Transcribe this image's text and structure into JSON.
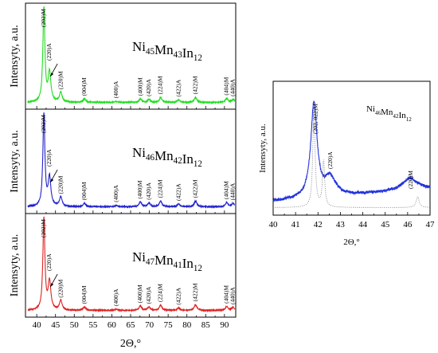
{
  "chart_data": [
    {
      "type": "line",
      "panel": "main-top",
      "composition": {
        "el1": "Ni",
        "n1": "45",
        "el2": "Mn",
        "n2": "43",
        "el3": "In",
        "n3": "12"
      },
      "ylabel": "Intensyty, a.u.",
      "xlim": [
        37,
        93
      ],
      "color": "#22dd22",
      "peaks": [
        {
          "x": 41.9,
          "h": 0.96
        },
        {
          "x": 43.4,
          "h": 0.3
        },
        {
          "x": 46.4,
          "h": 0.1
        },
        {
          "x": 52.7,
          "h": 0.035
        },
        {
          "x": 61.2,
          "h": 0.01
        },
        {
          "x": 67.6,
          "h": 0.035
        },
        {
          "x": 69.9,
          "h": 0.03
        },
        {
          "x": 73.0,
          "h": 0.05
        },
        {
          "x": 77.8,
          "h": 0.025
        },
        {
          "x": 82.3,
          "h": 0.05
        },
        {
          "x": 90.6,
          "h": 0.04
        },
        {
          "x": 92.3,
          "h": 0.03
        }
      ],
      "annotations": [
        {
          "text": "(202)M",
          "x": 41.9
        },
        {
          "text": "(220)A",
          "x": 43.4
        },
        {
          "text": "(220)M",
          "x": 46.4
        },
        {
          "text": "(004)M",
          "x": 52.7
        },
        {
          "text": "(400)A",
          "x": 61.2
        },
        {
          "text": "(400)M",
          "x": 67.6
        },
        {
          "text": "(420)A",
          "x": 69.9
        },
        {
          "text": "(224)M",
          "x": 73.0
        },
        {
          "text": "(422)A",
          "x": 77.8
        },
        {
          "text": "(422)M",
          "x": 82.3
        },
        {
          "text": "(404)M",
          "x": 90.6
        },
        {
          "text": "(440)A",
          "x": 92.3
        }
      ]
    },
    {
      "type": "line",
      "panel": "main-middle",
      "composition": {
        "el1": "Ni",
        "n1": "46",
        "el2": "Mn",
        "n2": "42",
        "el3": "In",
        "n3": "12"
      },
      "ylabel": "Intensyty, a.u.",
      "xlim": [
        37,
        93
      ],
      "color": "#2222cc",
      "peaks": [
        {
          "x": 41.9,
          "h": 0.96
        },
        {
          "x": 43.4,
          "h": 0.3
        },
        {
          "x": 46.4,
          "h": 0.1
        },
        {
          "x": 52.7,
          "h": 0.035
        },
        {
          "x": 61.2,
          "h": 0.015
        },
        {
          "x": 67.6,
          "h": 0.05
        },
        {
          "x": 69.9,
          "h": 0.04
        },
        {
          "x": 73.0,
          "h": 0.06
        },
        {
          "x": 77.8,
          "h": 0.03
        },
        {
          "x": 82.3,
          "h": 0.06
        },
        {
          "x": 90.6,
          "h": 0.045
        },
        {
          "x": 92.3,
          "h": 0.035
        }
      ],
      "annotations": [
        {
          "text": "(202)M",
          "x": 41.9
        },
        {
          "text": "(220)A",
          "x": 43.4
        },
        {
          "text": "(220)M",
          "x": 46.4
        },
        {
          "text": "(004)M",
          "x": 52.7
        },
        {
          "text": "(400)A",
          "x": 61.2
        },
        {
          "text": "(400)M",
          "x": 67.6
        },
        {
          "text": "(420)A",
          "x": 69.9
        },
        {
          "text": "(224)M",
          "x": 73.0
        },
        {
          "text": "(422)A",
          "x": 77.8
        },
        {
          "text": "(422)M",
          "x": 82.3
        },
        {
          "text": "(404)M",
          "x": 90.6
        },
        {
          "text": "(440)A",
          "x": 92.3
        }
      ]
    },
    {
      "type": "line",
      "panel": "main-bottom",
      "composition": {
        "el1": "Ni",
        "n1": "47",
        "el2": "Mn",
        "n2": "41",
        "el3": "In",
        "n3": "12"
      },
      "ylabel": "Intensyty, a.u.",
      "xlabel": "2Θ,°",
      "xlim": [
        37,
        93
      ],
      "xticks": [
        40,
        45,
        50,
        55,
        60,
        65,
        70,
        75,
        80,
        85,
        90
      ],
      "color": "#dd2222",
      "peaks": [
        {
          "x": 41.9,
          "h": 0.96
        },
        {
          "x": 43.4,
          "h": 0.3
        },
        {
          "x": 46.4,
          "h": 0.1
        },
        {
          "x": 52.7,
          "h": 0.035
        },
        {
          "x": 61.2,
          "h": 0.012
        },
        {
          "x": 67.6,
          "h": 0.045
        },
        {
          "x": 69.9,
          "h": 0.035
        },
        {
          "x": 73.0,
          "h": 0.055
        },
        {
          "x": 77.8,
          "h": 0.025
        },
        {
          "x": 82.3,
          "h": 0.06
        },
        {
          "x": 90.6,
          "h": 0.04
        },
        {
          "x": 92.3,
          "h": 0.03
        }
      ],
      "annotations": [
        {
          "text": "(202)M",
          "x": 41.9
        },
        {
          "text": "(220)A",
          "x": 43.4
        },
        {
          "text": "(220)M",
          "x": 46.4
        },
        {
          "text": "(004)M",
          "x": 52.7
        },
        {
          "text": "(400)A",
          "x": 61.2
        },
        {
          "text": "(400)M",
          "x": 67.6
        },
        {
          "text": "(420)A",
          "x": 69.9
        },
        {
          "text": "(224)M",
          "x": 73.0
        },
        {
          "text": "(422)A",
          "x": 77.8
        },
        {
          "text": "(422)M",
          "x": 82.3
        },
        {
          "text": "(404)M",
          "x": 90.6
        },
        {
          "text": "(440)A",
          "x": 92.3
        }
      ]
    },
    {
      "type": "line",
      "panel": "zoom",
      "composition": {
        "el1": "Ni",
        "n1": "46",
        "el2": "Mn",
        "n2": "42",
        "el3": "In",
        "n3": "12"
      },
      "ylabel": "Intensyty, a.u.",
      "xlabel": "2Θ,°",
      "xlim": [
        40,
        47
      ],
      "xticks": [
        40,
        41,
        42,
        43,
        44,
        45,
        46,
        47
      ],
      "series": [
        {
          "style": "solid",
          "color": "#2233dd",
          "baseline": 0.06,
          "slope": 0.015,
          "peaks": [
            {
              "x": 41.82,
              "h": 0.78,
              "w": 0.17
            },
            {
              "x": 42.55,
              "h": 0.15,
              "w": 0.3
            },
            {
              "x": 46.1,
              "h": 0.1,
              "w": 0.4
            }
          ]
        },
        {
          "style": "dotted",
          "color": "#888888",
          "baseline": 0.01,
          "slope": 0,
          "peaks": [
            {
              "x": 41.82,
              "h": 0.82,
              "w": 0.06
            },
            {
              "x": 42.25,
              "h": 0.38,
              "w": 0.06
            },
            {
              "x": 46.45,
              "h": 0.09,
              "w": 0.08
            }
          ]
        }
      ],
      "annotations": [
        {
          "text": "(202, 022)M",
          "x": 41.9
        },
        {
          "text": "(220)A",
          "x": 42.55
        },
        {
          "text": "(220)M",
          "x": 46.15
        }
      ]
    }
  ]
}
